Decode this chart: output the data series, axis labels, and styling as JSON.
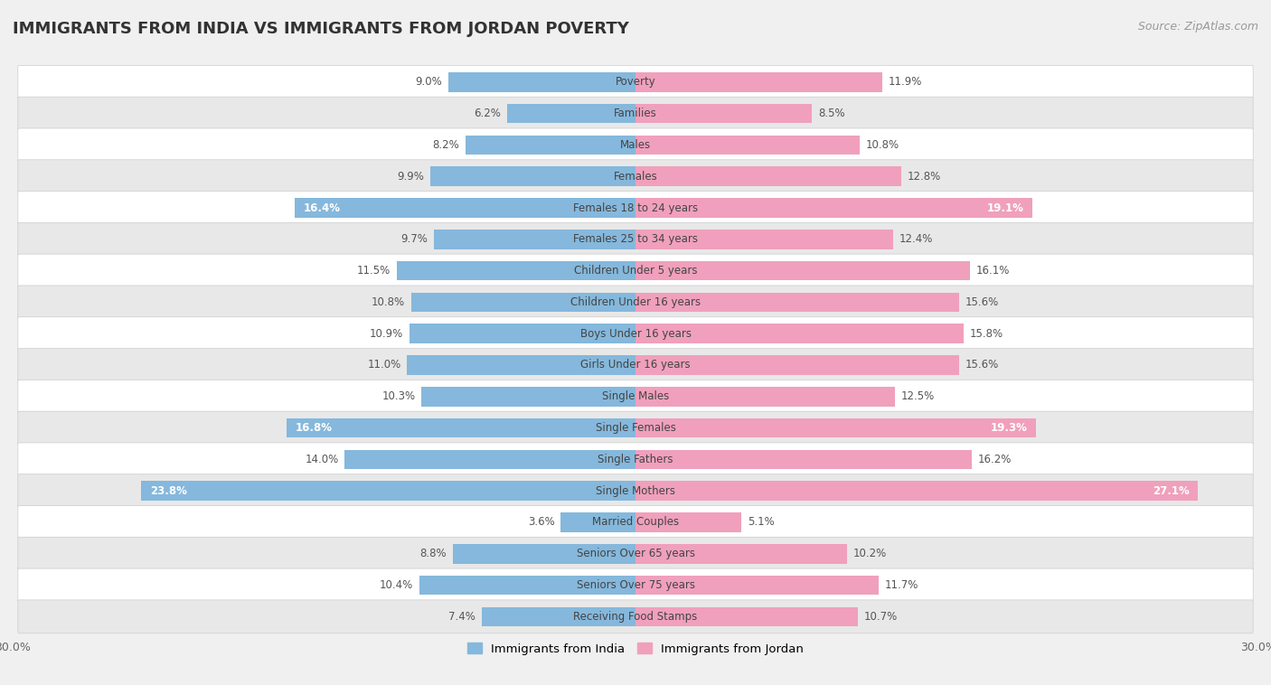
{
  "title": "IMMIGRANTS FROM INDIA VS IMMIGRANTS FROM JORDAN POVERTY",
  "source": "Source: ZipAtlas.com",
  "categories": [
    "Poverty",
    "Families",
    "Males",
    "Females",
    "Females 18 to 24 years",
    "Females 25 to 34 years",
    "Children Under 5 years",
    "Children Under 16 years",
    "Boys Under 16 years",
    "Girls Under 16 years",
    "Single Males",
    "Single Females",
    "Single Fathers",
    "Single Mothers",
    "Married Couples",
    "Seniors Over 65 years",
    "Seniors Over 75 years",
    "Receiving Food Stamps"
  ],
  "india_values": [
    9.0,
    6.2,
    8.2,
    9.9,
    16.4,
    9.7,
    11.5,
    10.8,
    10.9,
    11.0,
    10.3,
    16.8,
    14.0,
    23.8,
    3.6,
    8.8,
    10.4,
    7.4
  ],
  "jordan_values": [
    11.9,
    8.5,
    10.8,
    12.8,
    19.1,
    12.4,
    16.1,
    15.6,
    15.8,
    15.6,
    12.5,
    19.3,
    16.2,
    27.1,
    5.1,
    10.2,
    11.7,
    10.7
  ],
  "india_color": "#85b8dc",
  "jordan_color": "#f0a0bc",
  "india_label": "Immigrants from India",
  "jordan_label": "Immigrants from Jordan",
  "axis_max": 30.0,
  "bg_color": "#f0f0f0",
  "row_color_odd": "#ffffff",
  "row_color_even": "#e8e8e8",
  "title_fontsize": 13,
  "source_fontsize": 9,
  "label_fontsize": 8.5,
  "value_fontsize": 8.5,
  "bar_height": 0.62,
  "india_highlight_threshold": 16.0,
  "jordan_highlight_threshold": 19.0
}
